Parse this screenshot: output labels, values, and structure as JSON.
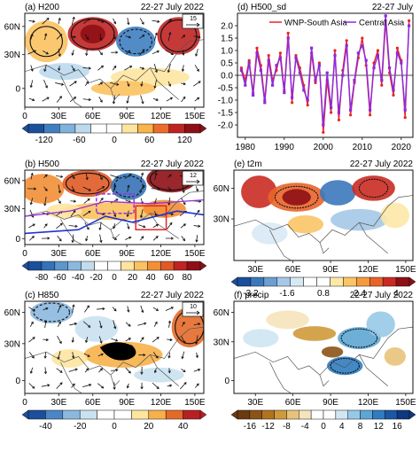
{
  "panels": {
    "a": {
      "label": "(a) H200",
      "date": "22-27 July 2022",
      "ref_vector": "15",
      "lat_ticks": [
        "60N",
        "30N",
        "0"
      ],
      "lon_ticks": [
        "0",
        "30E",
        "60E",
        "90E",
        "120E",
        "150E"
      ],
      "colorbar": {
        "labels": [
          "-120",
          "-60",
          "0",
          "60",
          "120"
        ],
        "colors": [
          "#1b4f9c",
          "#3f7fc1",
          "#7fb2dc",
          "#bcd9ee",
          "#ffffff",
          "#ffffff",
          "#fde5a0",
          "#f9b44a",
          "#ec6d2b",
          "#c02323",
          "#8e0f15"
        ]
      }
    },
    "b": {
      "label": "(b) H500",
      "date": "22-27 July 2022",
      "ref_vector": "12",
      "lat_ticks": [
        "60N",
        "30N",
        "0"
      ],
      "lon_ticks": [
        "0",
        "30E",
        "60E",
        "90E",
        "120E",
        "150E"
      ],
      "colorbar": {
        "labels": [
          "-80",
          "-60",
          "-40",
          "-20",
          "0",
          "20",
          "40",
          "60",
          "80"
        ],
        "colors": [
          "#1b4f9c",
          "#3572b6",
          "#5e95cc",
          "#8cb8de",
          "#c2dcee",
          "#ffffff",
          "#ffffff",
          "#fde5a0",
          "#fbc260",
          "#f28f36",
          "#e05a26",
          "#c02323",
          "#8e0f15"
        ]
      }
    },
    "c": {
      "label": "(c) H850",
      "date": "22-27 July 2022",
      "ref_vector": "10",
      "lat_ticks": [
        "60N",
        "30N",
        "0"
      ],
      "lon_ticks": [
        "0",
        "30E",
        "60E",
        "90E",
        "120E",
        "150E"
      ],
      "colorbar": {
        "labels": [
          "-40",
          "-20",
          "0",
          "20",
          "40"
        ],
        "colors": [
          "#1b4f9c",
          "#4a86c5",
          "#8cb8de",
          "#c9e1f0",
          "#ffffff",
          "#ffffff",
          "#fde5a0",
          "#f7b04a",
          "#e46a2a",
          "#b81f22"
        ]
      }
    },
    "d": {
      "label": "(d) H500_sd",
      "date": "22-27 July",
      "chart_data": {
        "type": "line",
        "title": "H500_sd",
        "xlabel": "",
        "ylabel": "",
        "xlim": [
          1978,
          2023
        ],
        "ylim": [
          -2.5,
          2.5
        ],
        "x_ticks": [
          "1980",
          "1990",
          "2000",
          "2010",
          "2020"
        ],
        "y_ticks": [
          "-2.0",
          "-1.5",
          "-1.0",
          "-0.5",
          "0.0",
          "0.5",
          "1.0",
          "1.5",
          "2.0"
        ],
        "legend_position": "top-right",
        "x": [
          1979,
          1980,
          1981,
          1982,
          1983,
          1984,
          1985,
          1986,
          1987,
          1988,
          1989,
          1990,
          1991,
          1992,
          1993,
          1994,
          1995,
          1996,
          1997,
          1998,
          1999,
          2000,
          2001,
          2002,
          2003,
          2004,
          2005,
          2006,
          2007,
          2008,
          2009,
          2010,
          2011,
          2012,
          2013,
          2014,
          2015,
          2016,
          2017,
          2018,
          2019,
          2020,
          2021,
          2022
        ],
        "series": [
          {
            "name": "WNP-South Asia",
            "color": "#e8232a",
            "values": [
              0.3,
              -0.2,
              0.6,
              -0.7,
              1.1,
              0.4,
              -1.0,
              0.8,
              -0.2,
              0.2,
              0.9,
              -0.6,
              1.7,
              -1.1,
              0.8,
              0.3,
              -0.4,
              -1.2,
              0.9,
              -0.3,
              0.5,
              -2.3,
              -0.2,
              -1.5,
              1.0,
              -1.8,
              0.2,
              1.4,
              -1.6,
              -0.3,
              0.7,
              1.5,
              0.4,
              -1.6,
              0.5,
              1.0,
              -0.4,
              2.2,
              0.1,
              -0.8,
              1.1,
              0.6,
              -1.7,
              2.2
            ]
          },
          {
            "name": "Central Asia",
            "color": "#8a2be2",
            "values": [
              0.2,
              -0.4,
              0.5,
              -0.8,
              0.9,
              0.2,
              -1.1,
              0.6,
              -0.4,
              0.4,
              0.7,
              -0.7,
              1.5,
              -0.9,
              0.7,
              0.1,
              -0.6,
              -1.0,
              1.1,
              -0.2,
              0.4,
              -2.0,
              0.1,
              -1.3,
              0.8,
              -1.5,
              0.0,
              1.2,
              -1.4,
              -0.2,
              0.9,
              1.2,
              0.6,
              -1.4,
              0.3,
              0.8,
              -0.2,
              2.4,
              0.3,
              -0.6,
              0.9,
              0.5,
              -1.4,
              2.0
            ]
          }
        ]
      }
    },
    "e": {
      "label": "(e) t2m",
      "date": "22-27 July 2022",
      "lat_ticks": [
        "60N",
        "30N"
      ],
      "lon_ticks": [
        "30E",
        "60E",
        "90E",
        "120E",
        "150E"
      ],
      "colorbar": {
        "labels": [
          "-3.2",
          "-1.6",
          "0.8",
          "2.4",
          "4"
        ],
        "colors": [
          "#1b4f9c",
          "#3b78bb",
          "#6b9fd1",
          "#a5c8e6",
          "#d8e9f4",
          "#ffffff",
          "#ffffff",
          "#fde8a8",
          "#fbc465",
          "#f59a3c",
          "#e8642a",
          "#c92b22",
          "#8e0f15"
        ]
      }
    },
    "f": {
      "label": "(f) precip",
      "date": "22-27 July 2022",
      "lat_ticks": [
        "60N",
        "30N",
        "0"
      ],
      "lon_ticks": [
        "30E",
        "60E",
        "90E",
        "120E",
        "150E"
      ],
      "colorbar": {
        "labels": [
          "-16",
          "-12",
          "-8",
          "-4",
          "0",
          "4",
          "8",
          "12",
          "16"
        ],
        "colors": [
          "#6b3a0f",
          "#8c5316",
          "#b0741e",
          "#cf9a3a",
          "#e8c27a",
          "#f5e3bb",
          "#ffffff",
          "#ffffff",
          "#cfe6f3",
          "#97c9e6",
          "#5ea6d3",
          "#2f7cc0",
          "#1a57a4",
          "#0e3880"
        ]
      }
    }
  },
  "colors": {
    "pos_dark": "#b81f22",
    "pos": "#ec6d2b",
    "pos_light": "#fbc260",
    "neg_dark": "#1b4f9c",
    "neg": "#4a86c5",
    "neg_light": "#bcd9ee",
    "contour": "#111111",
    "box_purple": "#9b30d9",
    "box_red": "#e8232a",
    "ridge_blue": "#2233cc"
  }
}
